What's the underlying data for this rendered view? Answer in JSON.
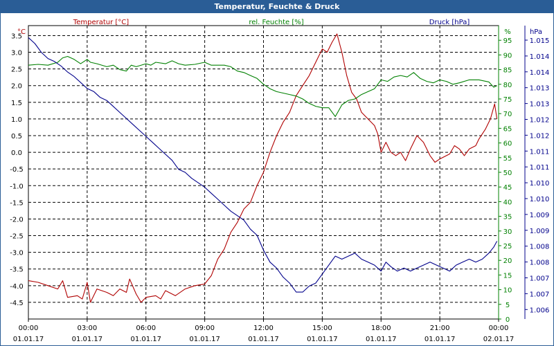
{
  "title": "Temperatur, Feuchte & Druck",
  "chart_data": {
    "type": "line",
    "x_ticks": [
      {
        "time": "00:00",
        "date": "01.01.17"
      },
      {
        "time": "03:00",
        "date": "01.01.17"
      },
      {
        "time": "06:00",
        "date": "01.01.17"
      },
      {
        "time": "09:00",
        "date": "01.01.17"
      },
      {
        "time": "12:00",
        "date": "01.01.17"
      },
      {
        "time": "15:00",
        "date": "01.01.17"
      },
      {
        "time": "18:00",
        "date": "01.01.17"
      },
      {
        "time": "21:00",
        "date": "01.01.17"
      },
      {
        "time": "00:00",
        "date": "02.01.17"
      }
    ],
    "xlim": [
      "01.01.17 00:00",
      "02.01.17 00:00"
    ],
    "grid": true,
    "axes": {
      "temperature": {
        "label": "Temperatur [°C]",
        "unit": "°C",
        "color": "#b00000",
        "ylim": [
          -5.0,
          3.8
        ],
        "ticks": [
          "3.5",
          "3.0",
          "2.5",
          "2.0",
          "1.5",
          "1.0",
          "0.5",
          "0.0",
          "-0.5",
          "-1.0",
          "-1.5",
          "-2.0",
          "-2.5",
          "-3.0",
          "-3.5",
          "-4.0",
          "-4.5"
        ]
      },
      "humidity": {
        "label": "rel. Feuchte [%]",
        "unit": "%",
        "color": "#008000",
        "ylim": [
          0,
          100
        ],
        "ticks": [
          "95",
          "90",
          "85",
          "80",
          "75",
          "70",
          "65",
          "60",
          "55",
          "50",
          "45",
          "40",
          "35",
          "30",
          "25",
          "20",
          "15",
          "10",
          "5",
          "0"
        ]
      },
      "pressure": {
        "label": "Druck [hPa]",
        "unit": "hPa",
        "color": "#00008b",
        "ylim": [
          1005.6,
          1015.4
        ],
        "ticks": [
          "1.015",
          "1.014",
          "1.014",
          "1.013",
          "1.013",
          "1.012",
          "1.012",
          "1.011",
          "1.011",
          "1.010",
          "1.010",
          "1.009",
          "1.009",
          "1.008",
          "1.008",
          "1.007",
          "1.007",
          "1.006"
        ]
      }
    },
    "series": [
      {
        "name": "Temperatur [°C]",
        "color": "#b00000",
        "axis": "temperature",
        "points": [
          [
            "00:00",
            -3.85
          ],
          [
            "00:30",
            -3.9
          ],
          [
            "01:00",
            -4.0
          ],
          [
            "01:30",
            -4.1
          ],
          [
            "01:45",
            -3.85
          ],
          [
            "02:00",
            -4.35
          ],
          [
            "02:30",
            -4.3
          ],
          [
            "02:45",
            -4.4
          ],
          [
            "03:00",
            -3.9
          ],
          [
            "03:10",
            -4.5
          ],
          [
            "03:30",
            -4.1
          ],
          [
            "04:00",
            -4.2
          ],
          [
            "04:20",
            -4.3
          ],
          [
            "04:40",
            -4.1
          ],
          [
            "05:00",
            -4.2
          ],
          [
            "05:10",
            -3.8
          ],
          [
            "05:30",
            -4.25
          ],
          [
            "05:45",
            -4.5
          ],
          [
            "06:00",
            -4.35
          ],
          [
            "06:30",
            -4.3
          ],
          [
            "06:45",
            -4.4
          ],
          [
            "07:00",
            -4.15
          ],
          [
            "07:30",
            -4.3
          ],
          [
            "08:00",
            -4.1
          ],
          [
            "08:30",
            -4.0
          ],
          [
            "09:00",
            -3.95
          ],
          [
            "09:20",
            -3.7
          ],
          [
            "09:40",
            -3.2
          ],
          [
            "10:00",
            -2.9
          ],
          [
            "10:20",
            -2.4
          ],
          [
            "10:40",
            -2.1
          ],
          [
            "11:00",
            -1.7
          ],
          [
            "11:20",
            -1.5
          ],
          [
            "11:40",
            -1.0
          ],
          [
            "12:00",
            -0.6
          ],
          [
            "12:20",
            0.0
          ],
          [
            "12:40",
            0.5
          ],
          [
            "13:00",
            0.9
          ],
          [
            "13:20",
            1.2
          ],
          [
            "13:40",
            1.7
          ],
          [
            "14:00",
            2.0
          ],
          [
            "14:20",
            2.3
          ],
          [
            "14:40",
            2.7
          ],
          [
            "15:00",
            3.1
          ],
          [
            "15:15",
            3.0
          ],
          [
            "15:30",
            3.3
          ],
          [
            "15:45",
            3.55
          ],
          [
            "16:00",
            3.0
          ],
          [
            "16:15",
            2.3
          ],
          [
            "16:30",
            1.8
          ],
          [
            "16:45",
            1.6
          ],
          [
            "17:00",
            1.2
          ],
          [
            "17:20",
            1.0
          ],
          [
            "17:40",
            0.8
          ],
          [
            "17:50",
            0.55
          ],
          [
            "18:00",
            0.0
          ],
          [
            "18:15",
            0.3
          ],
          [
            "18:30",
            0.0
          ],
          [
            "18:45",
            -0.1
          ],
          [
            "19:00",
            0.0
          ],
          [
            "19:15",
            -0.25
          ],
          [
            "19:30",
            0.1
          ],
          [
            "19:50",
            0.5
          ],
          [
            "20:10",
            0.3
          ],
          [
            "20:30",
            -0.1
          ],
          [
            "20:45",
            -0.3
          ],
          [
            "21:00",
            -0.2
          ],
          [
            "21:30",
            -0.05
          ],
          [
            "21:45",
            0.2
          ],
          [
            "22:00",
            0.1
          ],
          [
            "22:15",
            -0.1
          ],
          [
            "22:30",
            0.1
          ],
          [
            "22:50",
            0.2
          ],
          [
            "23:00",
            0.4
          ],
          [
            "23:20",
            0.7
          ],
          [
            "23:35",
            1.0
          ],
          [
            "23:48",
            1.45
          ],
          [
            "23:55",
            1.0
          ]
        ]
      },
      {
        "name": "rel. Feuchte [%]",
        "color": "#008000",
        "axis": "humidity",
        "points": [
          [
            "00:00",
            86.5
          ],
          [
            "00:30",
            86.8
          ],
          [
            "01:00",
            86.5
          ],
          [
            "01:30",
            87.5
          ],
          [
            "01:45",
            89.0
          ],
          [
            "02:00",
            89.5
          ],
          [
            "02:20",
            88.5
          ],
          [
            "02:40",
            87.0
          ],
          [
            "03:00",
            88.5
          ],
          [
            "03:10",
            87.5
          ],
          [
            "03:30",
            87.0
          ],
          [
            "04:00",
            86.0
          ],
          [
            "04:20",
            86.5
          ],
          [
            "04:40",
            85.0
          ],
          [
            "05:00",
            84.5
          ],
          [
            "05:15",
            86.5
          ],
          [
            "05:30",
            86.0
          ],
          [
            "06:00",
            87.0
          ],
          [
            "06:15",
            86.5
          ],
          [
            "06:30",
            87.5
          ],
          [
            "07:00",
            87.0
          ],
          [
            "07:20",
            88.0
          ],
          [
            "07:40",
            87.0
          ],
          [
            "08:00",
            86.5
          ],
          [
            "08:30",
            86.8
          ],
          [
            "09:00",
            87.5
          ],
          [
            "09:20",
            86.5
          ],
          [
            "09:40",
            86.5
          ],
          [
            "10:00",
            86.5
          ],
          [
            "10:20",
            86.0
          ],
          [
            "10:40",
            84.5
          ],
          [
            "11:00",
            84.0
          ],
          [
            "11:20",
            83.0
          ],
          [
            "11:40",
            82.0
          ],
          [
            "12:00",
            80.0
          ],
          [
            "12:20",
            78.5
          ],
          [
            "12:40",
            77.5
          ],
          [
            "13:00",
            77.0
          ],
          [
            "13:20",
            76.5
          ],
          [
            "13:40",
            76.0
          ],
          [
            "14:00",
            75.0
          ],
          [
            "14:20",
            73.5
          ],
          [
            "14:40",
            72.5
          ],
          [
            "15:00",
            72.0
          ],
          [
            "15:20",
            72.0
          ],
          [
            "15:30",
            70.5
          ],
          [
            "15:40",
            69.0
          ],
          [
            "15:50",
            71.0
          ],
          [
            "16:00",
            73.0
          ],
          [
            "16:20",
            74.5
          ],
          [
            "16:40",
            75.0
          ],
          [
            "17:00",
            76.5
          ],
          [
            "17:20",
            77.5
          ],
          [
            "17:40",
            78.5
          ],
          [
            "18:00",
            81.5
          ],
          [
            "18:20",
            81.0
          ],
          [
            "18:40",
            82.5
          ],
          [
            "19:00",
            83.0
          ],
          [
            "19:20",
            82.5
          ],
          [
            "19:40",
            84.0
          ],
          [
            "20:00",
            82.0
          ],
          [
            "20:20",
            81.0
          ],
          [
            "20:40",
            80.5
          ],
          [
            "21:00",
            81.5
          ],
          [
            "21:20",
            81.0
          ],
          [
            "21:40",
            80.0
          ],
          [
            "22:00",
            80.5
          ],
          [
            "22:30",
            81.5
          ],
          [
            "23:00",
            81.5
          ],
          [
            "23:30",
            80.8
          ],
          [
            "23:45",
            79.0
          ],
          [
            "23:55",
            79.5
          ]
        ]
      },
      {
        "name": "Druck [hPa]",
        "color": "#00008b",
        "axis": "pressure",
        "points": [
          [
            "00:00",
            1015.0
          ],
          [
            "00:20",
            1014.8
          ],
          [
            "00:40",
            1014.5
          ],
          [
            "01:00",
            1014.3
          ],
          [
            "01:20",
            1014.2
          ],
          [
            "01:40",
            1014.05
          ],
          [
            "02:00",
            1013.85
          ],
          [
            "02:20",
            1013.7
          ],
          [
            "02:40",
            1013.5
          ],
          [
            "03:00",
            1013.3
          ],
          [
            "03:20",
            1013.2
          ],
          [
            "03:40",
            1013.0
          ],
          [
            "04:00",
            1012.9
          ],
          [
            "04:20",
            1012.7
          ],
          [
            "04:40",
            1012.5
          ],
          [
            "05:00",
            1012.3
          ],
          [
            "05:20",
            1012.1
          ],
          [
            "05:40",
            1011.9
          ],
          [
            "06:00",
            1011.7
          ],
          [
            "06:20",
            1011.5
          ],
          [
            "06:40",
            1011.3
          ],
          [
            "07:00",
            1011.1
          ],
          [
            "07:20",
            1010.9
          ],
          [
            "07:40",
            1010.6
          ],
          [
            "08:00",
            1010.5
          ],
          [
            "08:20",
            1010.3
          ],
          [
            "08:40",
            1010.15
          ],
          [
            "09:00",
            1010.0
          ],
          [
            "09:20",
            1009.8
          ],
          [
            "09:40",
            1009.6
          ],
          [
            "10:00",
            1009.4
          ],
          [
            "10:20",
            1009.2
          ],
          [
            "10:40",
            1009.05
          ],
          [
            "11:00",
            1008.9
          ],
          [
            "11:20",
            1008.6
          ],
          [
            "11:40",
            1008.4
          ],
          [
            "12:00",
            1007.9
          ],
          [
            "12:20",
            1007.5
          ],
          [
            "12:40",
            1007.3
          ],
          [
            "13:00",
            1007.0
          ],
          [
            "13:20",
            1006.8
          ],
          [
            "13:40",
            1006.5
          ],
          [
            "14:00",
            1006.5
          ],
          [
            "14:20",
            1006.7
          ],
          [
            "14:40",
            1006.8
          ],
          [
            "15:00",
            1007.1
          ],
          [
            "15:20",
            1007.4
          ],
          [
            "15:40",
            1007.7
          ],
          [
            "16:00",
            1007.6
          ],
          [
            "16:20",
            1007.7
          ],
          [
            "16:40",
            1007.8
          ],
          [
            "17:00",
            1007.6
          ],
          [
            "17:20",
            1007.5
          ],
          [
            "17:40",
            1007.4
          ],
          [
            "18:00",
            1007.2
          ],
          [
            "18:15",
            1007.5
          ],
          [
            "18:30",
            1007.35
          ],
          [
            "18:50",
            1007.2
          ],
          [
            "19:10",
            1007.3
          ],
          [
            "19:30",
            1007.2
          ],
          [
            "19:50",
            1007.3
          ],
          [
            "20:10",
            1007.4
          ],
          [
            "20:30",
            1007.5
          ],
          [
            "20:50",
            1007.4
          ],
          [
            "21:10",
            1007.3
          ],
          [
            "21:30",
            1007.2
          ],
          [
            "21:50",
            1007.4
          ],
          [
            "22:10",
            1007.5
          ],
          [
            "22:30",
            1007.6
          ],
          [
            "22:50",
            1007.5
          ],
          [
            "23:10",
            1007.6
          ],
          [
            "23:30",
            1007.8
          ],
          [
            "23:45",
            1008.0
          ],
          [
            "23:55",
            1008.2
          ]
        ]
      }
    ]
  }
}
